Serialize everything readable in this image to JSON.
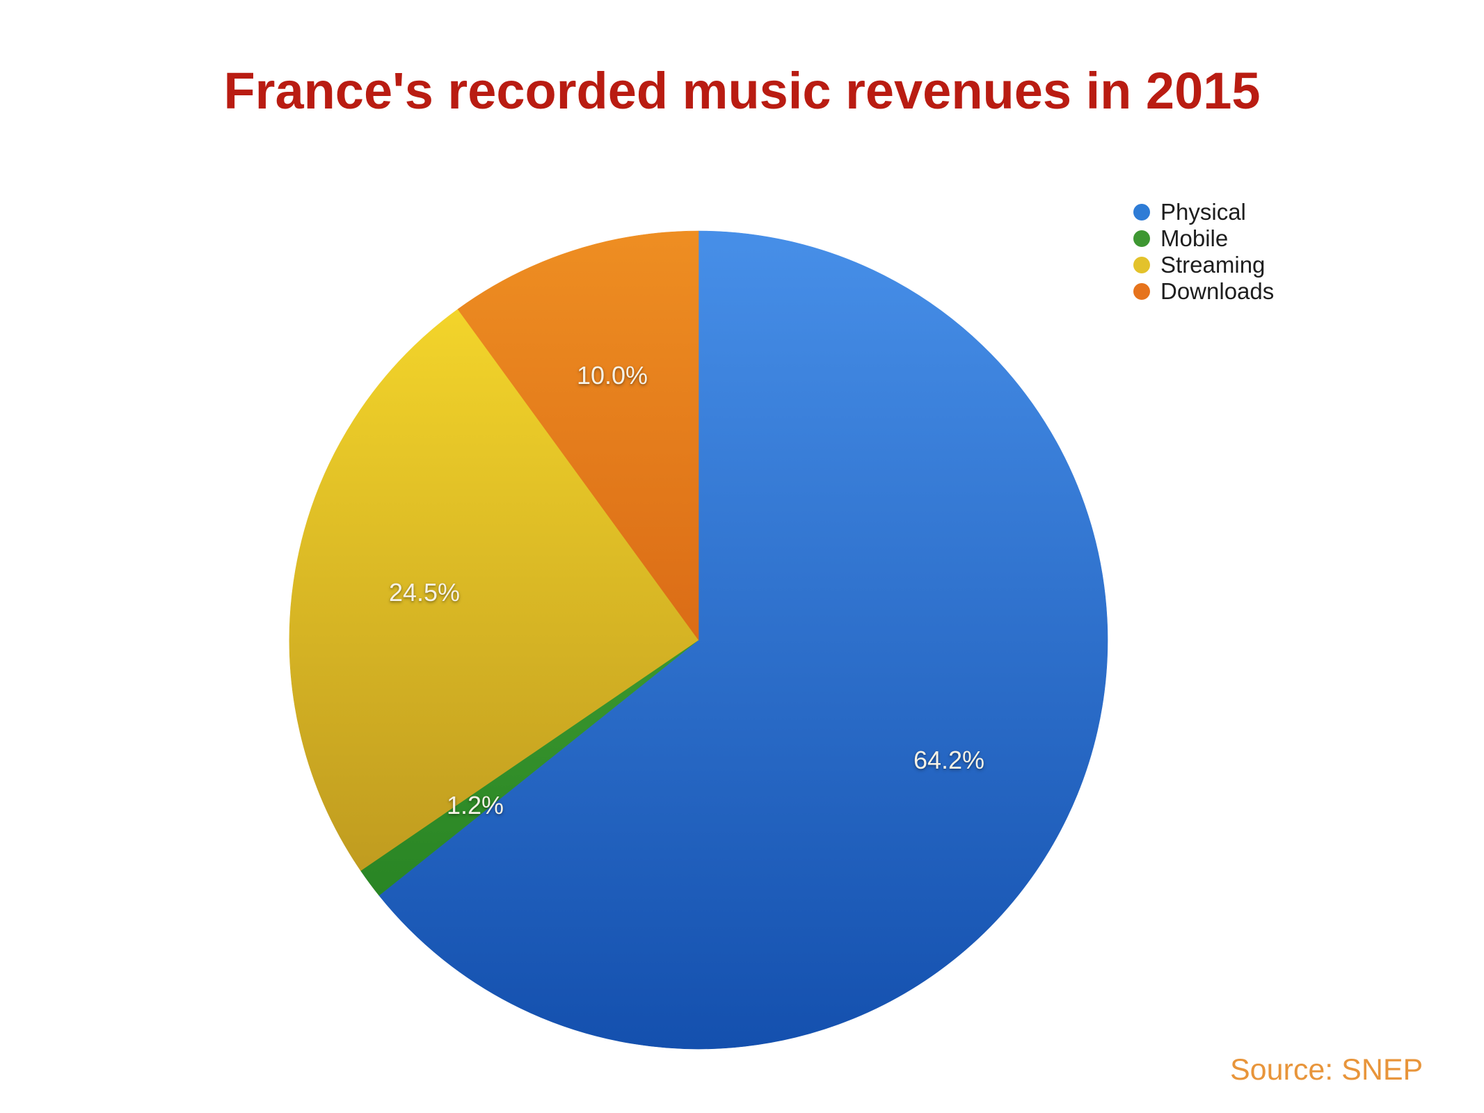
{
  "page": {
    "background": "#FFFFFF"
  },
  "title": {
    "text": "France's recorded music revenues in 2015",
    "color": "#B91C12"
  },
  "legend": {
    "position": "top-right",
    "items": [
      "Physical",
      "Mobile",
      "Streaming",
      "Downloads"
    ]
  },
  "source": {
    "text": "Source: SNEP",
    "color": "#E8953B"
  },
  "chart_data": {
    "type": "pie",
    "title": "France's recorded music revenues in 2015",
    "unit": "%",
    "start_angle_deg": 0,
    "direction": "clockwise",
    "legend_position": "top-right",
    "label_radius_fraction": 0.68,
    "label_color": "#F6F2E6",
    "source": "Source: SNEP",
    "slices": [
      {
        "label": "Physical",
        "value": 64.2,
        "display": "64.2%",
        "color": "#2E7CD6",
        "gradient": [
          "#478FE8",
          "#1450AE"
        ]
      },
      {
        "label": "Mobile",
        "value": 1.2,
        "display": "1.2%",
        "color": "#3E9732",
        "gradient": [
          "#58B43F",
          "#1E7A1E"
        ]
      },
      {
        "label": "Streaming",
        "value": 24.5,
        "display": "24.5%",
        "color": "#E3C22B",
        "gradient": [
          "#FADC2C",
          "#B08A1C"
        ]
      },
      {
        "label": "Downloads",
        "value": 10.0,
        "display": "10.0%",
        "color": "#E6731C",
        "gradient": [
          "#EE8E22",
          "#C84A0A"
        ]
      }
    ]
  }
}
